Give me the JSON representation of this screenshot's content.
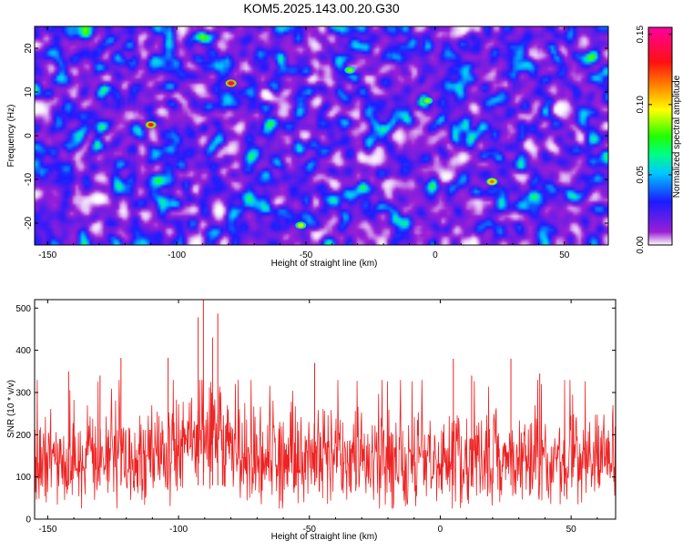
{
  "chart_data": [
    {
      "type": "heatmap",
      "title": "KOM5.2025.143.00.20.G30",
      "xlabel": "Height of straight line (km)",
      "ylabel": "Frequency (Hz)",
      "xlim": [
        -155,
        67
      ],
      "ylim": [
        -25,
        25
      ],
      "xticks": [
        -150,
        -100,
        -50,
        0,
        50
      ],
      "yticks": [
        -20,
        -10,
        0,
        10,
        20
      ],
      "grid": false,
      "colorbar": {
        "label": "Normalized spectral amplitude",
        "range": [
          0,
          0.155
        ],
        "ticks": [
          "0.00",
          "0.05",
          "0.10",
          "0.15"
        ],
        "colors": [
          "#ffffff",
          "#9a1fd6",
          "#1b1bff",
          "#00c8ff",
          "#00ff80",
          "#20ff00",
          "#ffff00",
          "#ff9000",
          "#ff1010",
          "#ff00a0"
        ]
      },
      "note_values": "dense noise-like field; background about 0.00-0.03 with scattered blobs up to about 0.06 and a few peaks near 0.15",
      "peaks": [
        {
          "x": -79,
          "y": 12,
          "value": 0.15
        },
        {
          "x": -110,
          "y": 2.5,
          "value": 0.14
        },
        {
          "x": 22,
          "y": -10.5,
          "value": 0.12
        },
        {
          "x": -52,
          "y": -20.5,
          "value": 0.1
        },
        {
          "x": -33,
          "y": 15,
          "value": 0.09
        },
        {
          "x": -3,
          "y": 8,
          "value": 0.09
        }
      ]
    },
    {
      "type": "line",
      "xlabel": "Height of straight line (km)",
      "ylabel": "SNR (10 * v/v)",
      "xlim": [
        -155,
        67
      ],
      "ylim": [
        0,
        520
      ],
      "xticks": [
        -150,
        -100,
        -50,
        0,
        50
      ],
      "yticks": [
        0,
        100,
        200,
        300,
        400,
        500
      ],
      "color": "#ee2222",
      "note_values": "dense noisy series, baseline about 50-250, spikes to about 300-400, largest peaks near x=-90",
      "peaks": [
        {
          "x": -90.5,
          "y": 520
        },
        {
          "x": -85,
          "y": 487
        },
        {
          "x": -92.5,
          "y": 478
        },
        {
          "x": -87,
          "y": 430
        },
        {
          "x": -104,
          "y": 382
        },
        {
          "x": -122,
          "y": 382
        },
        {
          "x": -142,
          "y": 350
        },
        {
          "x": -130,
          "y": 340
        },
        {
          "x": -48,
          "y": 370
        },
        {
          "x": 5,
          "y": 380
        },
        {
          "x": 27,
          "y": 380
        },
        {
          "x": 12,
          "y": 340
        },
        {
          "x": 38,
          "y": 345
        }
      ]
    }
  ]
}
